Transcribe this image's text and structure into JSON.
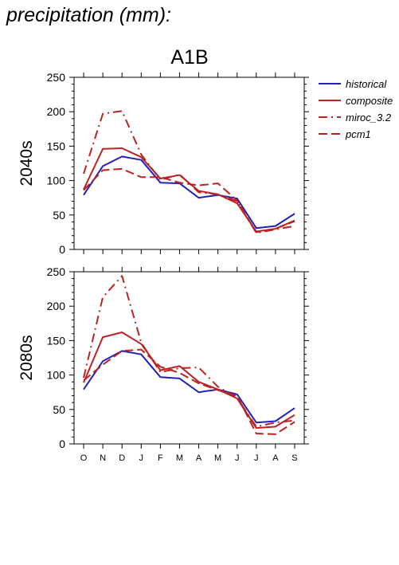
{
  "heading": "precipitation (mm):",
  "chart_data": {
    "type": "line",
    "title": "A1B",
    "categories": [
      "O",
      "N",
      "D",
      "J",
      "F",
      "M",
      "A",
      "M",
      "J",
      "J",
      "A",
      "S"
    ],
    "ylim": [
      0,
      250
    ],
    "yticks": [
      0,
      50,
      100,
      150,
      200,
      250
    ],
    "grid": false,
    "legend_position": "right",
    "legend": [
      {
        "name": "historical",
        "color": "#2222bb",
        "style": "solid"
      },
      {
        "name": "composite",
        "color": "#bb2222",
        "style": "solid"
      },
      {
        "name": "miroc_3.2",
        "color": "#bb2222",
        "style": "dash-dot"
      },
      {
        "name": "pcm1",
        "color": "#bb2222",
        "style": "dashed"
      }
    ],
    "panels": [
      {
        "label": "2040s",
        "series": [
          {
            "name": "historical",
            "values": [
              79,
              121,
              135,
              130,
              97,
              96,
              75,
              79,
              74,
              31,
              34,
              52
            ]
          },
          {
            "name": "composite",
            "values": [
              87,
              146,
              147,
              134,
              103,
              108,
              85,
              80,
              67,
              26,
              30,
              42
            ]
          },
          {
            "name": "miroc_3.2",
            "values": [
              110,
              197,
              201,
              138,
              101,
              109,
              83,
              80,
              70,
              24,
              29,
              34
            ]
          },
          {
            "name": "pcm1",
            "values": [
              86,
              115,
              117,
              105,
              105,
              97,
              93,
              96,
              71,
              25,
              30,
              41
            ]
          }
        ]
      },
      {
        "label": "2080s",
        "series": [
          {
            "name": "historical",
            "values": [
              79,
              120,
              135,
              130,
              97,
              95,
              75,
              79,
              72,
              31,
              33,
              52
            ]
          },
          {
            "name": "composite",
            "values": [
              89,
              155,
              162,
              145,
              107,
              113,
              90,
              79,
              66,
              23,
              25,
              42
            ]
          },
          {
            "name": "miroc_3.2",
            "values": [
              96,
              213,
              244,
              147,
              104,
              110,
              111,
              83,
              67,
              25,
              31,
              34
            ]
          },
          {
            "name": "pcm1",
            "values": [
              92,
              115,
              135,
              137,
              112,
              103,
              88,
              78,
              70,
              15,
              14,
              32
            ]
          }
        ]
      }
    ]
  }
}
